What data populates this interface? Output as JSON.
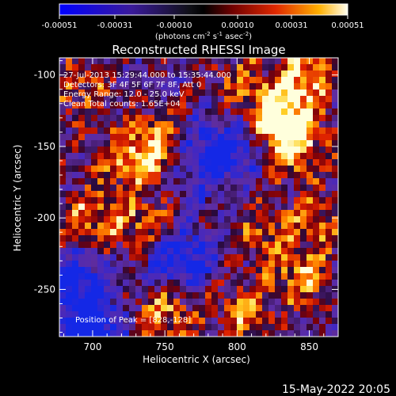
{
  "chart_data": {
    "type": "heatmap",
    "title": "Reconstructed RHESSI Image",
    "xlabel": "Heliocentric X (arcsec)",
    "ylabel": "Heliocentric Y (arcsec)",
    "xlim": [
      677,
      870
    ],
    "ylim": [
      -283,
      -88
    ],
    "x_ticks": [
      700,
      750,
      800,
      850
    ],
    "y_ticks": [
      -100,
      -150,
      -200,
      -250
    ],
    "colorbar": {
      "ticks": [
        "-0.00051",
        "-0.00031",
        "-0.00010",
        "0.00010",
        "0.00031",
        "0.00051"
      ],
      "range": [
        -0.00051,
        0.00051
      ],
      "units_prefix": "(photons cm",
      "units_exp1": "-2",
      "units_mid": " s",
      "units_exp2": "-1",
      "units_mid2": " asec",
      "units_exp3": "-2",
      "units_suffix": ")"
    },
    "annotations": [
      "27-Jul-2013 15:29:44.000 to 15:35:44.000",
      "Detectors: 3F 4F 5F 6F 7F 8F, Att 0",
      "Energy Range: 12.0 - 25.0 keV",
      "Clean     Total counts: 1.65E+04"
    ],
    "peak_label": "Position of Peak = [828,-128]",
    "peak": [
      828,
      -128
    ],
    "bright_regions": [
      {
        "x": 828,
        "y": -128,
        "intensity": 1.0
      },
      {
        "x": 840,
        "y": -150,
        "intensity": 0.8
      },
      {
        "x": 850,
        "y": -100,
        "intensity": 0.7
      },
      {
        "x": 745,
        "y": -150,
        "intensity": 0.75
      },
      {
        "x": 722,
        "y": -158,
        "intensity": 0.55
      },
      {
        "x": 690,
        "y": -110,
        "intensity": 0.55
      },
      {
        "x": 700,
        "y": -200,
        "intensity": 0.65
      },
      {
        "x": 735,
        "y": -205,
        "intensity": 0.55
      },
      {
        "x": 750,
        "y": -265,
        "intensity": 0.7
      },
      {
        "x": 820,
        "y": -210,
        "intensity": 0.5
      },
      {
        "x": 805,
        "y": -265,
        "intensity": 0.6
      },
      {
        "x": 845,
        "y": -240,
        "intensity": 0.65
      },
      {
        "x": 860,
        "y": -200,
        "intensity": 0.45
      },
      {
        "x": 800,
        "y": -100,
        "intensity": 0.4
      }
    ],
    "dark_regions": [
      {
        "x": 760,
        "y": -230,
        "intensity": -0.8
      },
      {
        "x": 690,
        "y": -245,
        "intensity": -0.7
      },
      {
        "x": 775,
        "y": -160,
        "intensity": -0.6
      },
      {
        "x": 700,
        "y": -280,
        "intensity": -0.9
      },
      {
        "x": 800,
        "y": -150,
        "intensity": -0.5
      }
    ]
  },
  "footer": {
    "timestamp": "15-May-2022 20:05"
  }
}
